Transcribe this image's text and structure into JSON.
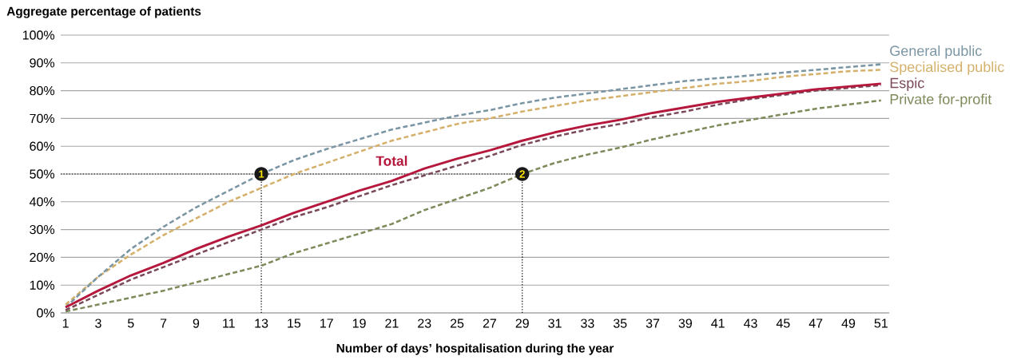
{
  "chart_data": {
    "type": "line",
    "title": "Aggregate percentage of patients",
    "xlabel": "Number of days’ hospitalisation during the year",
    "x": [
      1,
      3,
      5,
      7,
      9,
      11,
      13,
      15,
      17,
      19,
      21,
      23,
      25,
      27,
      29,
      31,
      33,
      35,
      37,
      39,
      41,
      43,
      45,
      47,
      49,
      51
    ],
    "series": [
      {
        "color": "#b5183c",
        "line_style": "solid",
        "values": [
          2,
          8,
          13.5,
          18,
          23,
          27.5,
          31.5,
          36,
          40,
          44,
          47.5,
          52,
          55.5,
          58.5,
          62,
          65,
          67.5,
          69.5,
          72,
          74,
          76,
          77.5,
          79,
          80.5,
          81.5,
          82.5
        ]
      },
      {
        "name": "General public",
        "color": "#7a95a3",
        "line_style": "dashed",
        "values": [
          2,
          13,
          23,
          31,
          38,
          44,
          50,
          55,
          59,
          62.5,
          66,
          68.5,
          71,
          73,
          75.5,
          77.5,
          79,
          80.5,
          82,
          83.5,
          84.5,
          85.5,
          86.5,
          87.5,
          88.5,
          89.5
        ]
      },
      {
        "name": "Specialised public",
        "color": "#d4b06a",
        "line_style": "dashed",
        "values": [
          3,
          13,
          21,
          28,
          34,
          40,
          45,
          50,
          54,
          58,
          62,
          65,
          68,
          70,
          72.5,
          74.5,
          76.5,
          78,
          79.5,
          81,
          82.5,
          83.5,
          85,
          86,
          87,
          87.5
        ]
      },
      {
        "name": "Espic",
        "color": "#7a4a5a",
        "line_style": "dashed",
        "values": [
          1,
          6.5,
          12,
          16.5,
          21,
          25.5,
          30,
          34.5,
          38,
          42,
          46,
          49.5,
          53,
          56.5,
          60.5,
          63.5,
          66,
          68,
          70.5,
          72.5,
          75,
          77,
          78.5,
          80,
          81,
          82
        ]
      },
      {
        "name": "Private for-profit",
        "color": "#7d8a5a",
        "line_style": "dashed",
        "values": [
          0.5,
          3,
          5.5,
          8,
          11,
          14,
          17,
          21.5,
          25,
          28.5,
          32,
          37,
          41,
          45,
          50,
          54,
          57,
          59.5,
          62.5,
          65,
          67.5,
          69.5,
          71.5,
          73.5,
          75,
          76.5
        ]
      }
    ],
    "annotations": [
      "Total",
      {
        "text": "1",
        "x": 13,
        "y": 50
      },
      {
        "text": "2",
        "x": 29,
        "y": 50
      }
    ],
    "ref_lines": [
      {
        "axis": "y",
        "value": 50,
        "color": "#000000",
        "line_style": "dotted"
      },
      {
        "axis": "x",
        "value": 13,
        "color": "#000000",
        "line_style": "dotted"
      },
      {
        "axis": "x",
        "value": 29,
        "color": "#000000",
        "line_style": "dotted"
      }
    ],
    "xlim": [
      0.7,
      51.5
    ],
    "ylim": [
      0,
      100
    ],
    "xticks": [
      1,
      3,
      5,
      7,
      9,
      11,
      13,
      15,
      17,
      19,
      21,
      23,
      25,
      27,
      29,
      31,
      33,
      35,
      37,
      39,
      41,
      43,
      45,
      47,
      49,
      51
    ],
    "yticks": [
      {
        "value": 0,
        "label": "0%"
      },
      {
        "value": 10,
        "label": "10%"
      },
      {
        "value": 20,
        "label": "20%"
      },
      {
        "value": 30,
        "label": "30%"
      },
      {
        "value": 40,
        "label": "40%"
      },
      {
        "value": 50,
        "label": "50%"
      },
      {
        "value": 60,
        "label": "60%"
      },
      {
        "value": 70,
        "label": "70%"
      },
      {
        "value": 80,
        "label": "80%"
      },
      {
        "value": 90,
        "label": "90%"
      },
      {
        "value": 100,
        "label": "100%"
      }
    ],
    "grid": "y",
    "marker": "none"
  }
}
